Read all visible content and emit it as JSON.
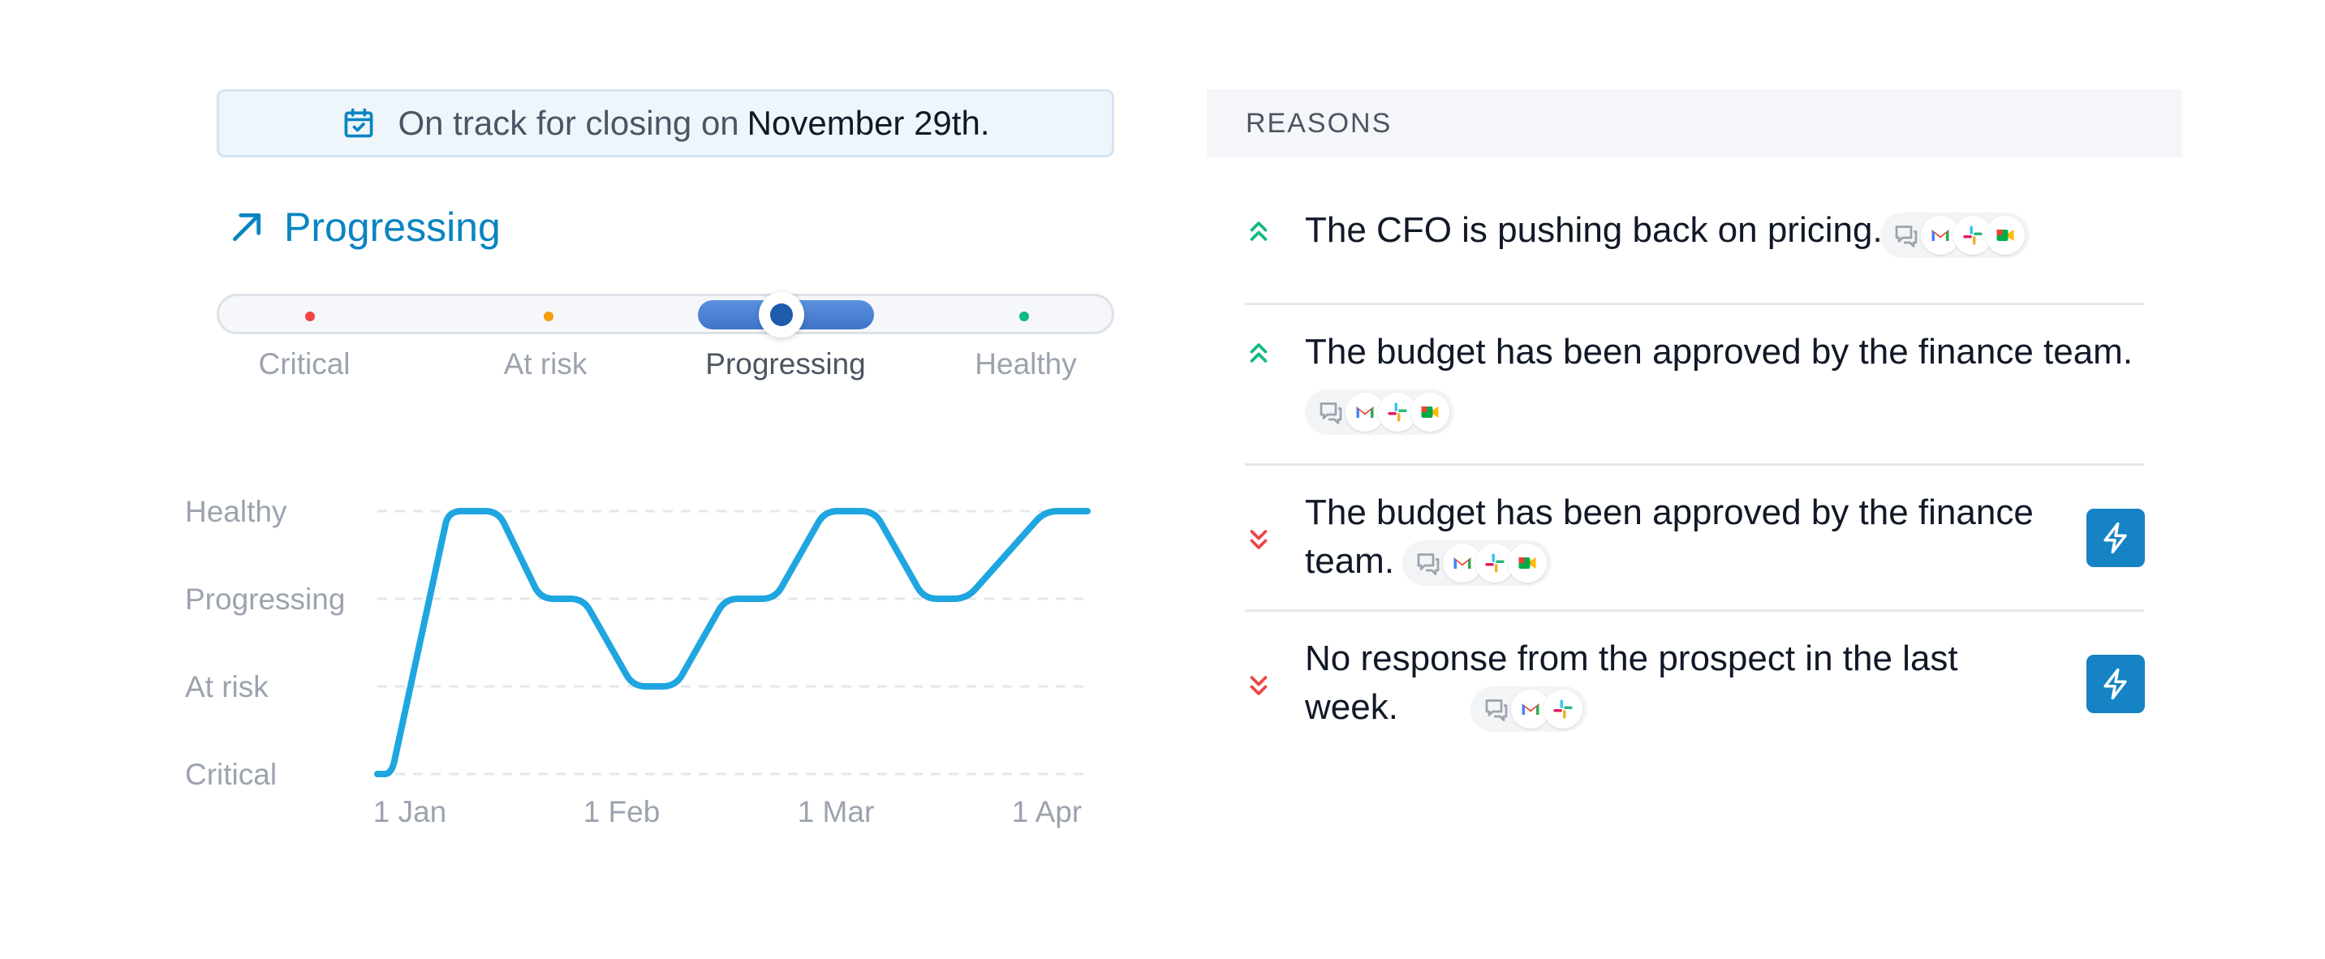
{
  "banner": {
    "icon": "calendar-check-icon",
    "prefix": "On track for closing on",
    "date": "November 29th."
  },
  "status": {
    "icon": "arrow-up-right-icon",
    "label": "Progressing"
  },
  "health_scale": {
    "levels": [
      {
        "label": "Critical",
        "color": "#ef4444"
      },
      {
        "label": "At risk",
        "color": "#f59e0b"
      },
      {
        "label": "Progressing",
        "color": "#3b73c9"
      },
      {
        "label": "Healthy",
        "color": "#10b981"
      }
    ],
    "selected": "Progressing"
  },
  "chart_data": {
    "type": "line",
    "y_categories": [
      "Critical",
      "At risk",
      "Progressing",
      "Healthy"
    ],
    "x_ticks": [
      "1 Jan",
      "1 Feb",
      "1 Mar",
      "1 Apr"
    ],
    "series": [
      {
        "color": "#1fa6e0",
        "points": [
          {
            "x": "2024-01-01",
            "y": 0
          },
          {
            "x": "2024-01-03",
            "y": 0
          },
          {
            "x": "2024-01-11",
            "y": 3
          },
          {
            "x": "2024-01-18",
            "y": 3
          },
          {
            "x": "2024-01-24",
            "y": 2
          },
          {
            "x": "2024-01-30",
            "y": 2
          },
          {
            "x": "2024-02-06",
            "y": 1
          },
          {
            "x": "2024-02-12",
            "y": 1
          },
          {
            "x": "2024-02-19",
            "y": 2
          },
          {
            "x": "2024-02-26",
            "y": 2
          },
          {
            "x": "2024-03-04",
            "y": 3
          },
          {
            "x": "2024-03-11",
            "y": 3
          },
          {
            "x": "2024-03-18",
            "y": 2
          },
          {
            "x": "2024-03-24",
            "y": 2
          },
          {
            "x": "2024-04-04",
            "y": 3
          },
          {
            "x": "2024-04-10",
            "y": 3
          }
        ]
      }
    ],
    "grid": "dashed horizontal",
    "legend": "none"
  },
  "reasons": {
    "header": "REASONS",
    "items": [
      {
        "direction": "up",
        "text": "The CFO is pushing back on pricing.",
        "sources": [
          "chat",
          "gmail",
          "slack",
          "meet"
        ],
        "action": false
      },
      {
        "direction": "up",
        "text": "The budget has been approved by the finance team.",
        "sources": [
          "chat",
          "gmail",
          "slack",
          "meet"
        ],
        "action": false
      },
      {
        "direction": "down",
        "line1": "The budget has been approved by the finance",
        "line2": "team.",
        "sources": [
          "chat",
          "gmail",
          "slack",
          "meet"
        ],
        "action": true
      },
      {
        "direction": "down",
        "line1": "No response from the prospect in the last",
        "line2": "week.",
        "sources": [
          "chat",
          "gmail",
          "slack"
        ],
        "action": true
      }
    ]
  },
  "colors": {
    "accent": "#0a84c1",
    "up": "#10b981",
    "down": "#ef4444",
    "action": "#1583c4"
  }
}
